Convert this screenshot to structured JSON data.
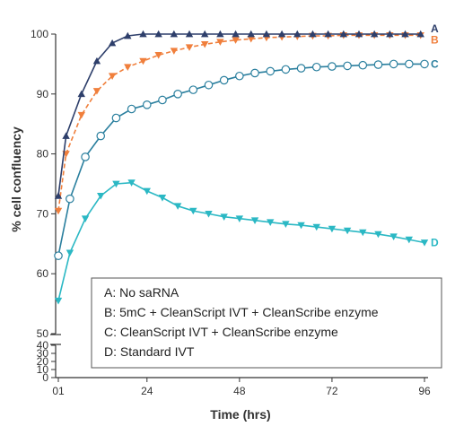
{
  "chart_data": {
    "type": "line",
    "xlabel": "Time (hrs)",
    "ylabel": "% cell confluency",
    "xlim": [
      1,
      96
    ],
    "ylim_main": [
      50,
      100
    ],
    "ylim_inset": [
      0,
      40
    ],
    "y_axis_break": true,
    "x_ticks": [
      {
        "value": 1,
        "label": "01"
      },
      {
        "value": 24,
        "label": "24"
      },
      {
        "value": 48,
        "label": "48"
      },
      {
        "value": 72,
        "label": "72"
      },
      {
        "value": 96,
        "label": "96"
      }
    ],
    "y_ticks_main": [
      {
        "value": 50,
        "label": "50"
      },
      {
        "value": 60,
        "label": "60"
      },
      {
        "value": 70,
        "label": "70"
      },
      {
        "value": 80,
        "label": "80"
      },
      {
        "value": 90,
        "label": "90"
      },
      {
        "value": 100,
        "label": "100"
      }
    ],
    "y_ticks_inset": [
      {
        "value": 0,
        "label": "0"
      },
      {
        "value": 10,
        "label": "10"
      },
      {
        "value": 20,
        "label": "20"
      },
      {
        "value": 30,
        "label": "30"
      },
      {
        "value": 40,
        "label": "40"
      }
    ],
    "grid": false,
    "legend_position": "bottom-right",
    "legend_entries": [
      "A: No saRNA",
      "B: 5mC + CleanScript IVT + CleanScribe enzyme",
      "C: CleanScript IVT + CleanScribe enzyme",
      "D: Standard IVT"
    ],
    "series": [
      {
        "name": "A",
        "color": "#2e3f6b",
        "marker": "triangle-up",
        "line": "solid",
        "x": [
          1,
          3,
          7,
          11,
          15,
          19,
          23,
          27,
          31,
          35,
          39,
          43,
          47,
          51,
          55,
          59,
          63,
          67,
          71,
          75,
          79,
          83,
          87,
          91,
          95
        ],
        "y": [
          73,
          83,
          90,
          95.5,
          98.5,
          99.7,
          100,
          100,
          100,
          100,
          100,
          100,
          100,
          100,
          100,
          100,
          100,
          100,
          100,
          100,
          100,
          100,
          100,
          100,
          100
        ]
      },
      {
        "name": "B",
        "color": "#f07f3c",
        "marker": "triangle-down",
        "line": "dashed",
        "x": [
          1,
          3,
          7,
          11,
          15,
          19,
          23,
          27,
          31,
          35,
          39,
          43,
          47,
          51,
          55,
          59,
          63,
          67,
          71,
          75,
          79,
          83,
          87,
          91,
          95
        ],
        "y": [
          70.5,
          80,
          86.5,
          90.5,
          93,
          94.5,
          95.5,
          96.5,
          97.2,
          97.8,
          98.3,
          98.7,
          99,
          99.2,
          99.4,
          99.5,
          99.6,
          99.7,
          99.7,
          99.8,
          99.8,
          99.8,
          99.8,
          99.8,
          99.8
        ]
      },
      {
        "name": "C",
        "color": "#2a7f9e",
        "marker": "circle",
        "line": "solid",
        "x": [
          1,
          4,
          8,
          12,
          16,
          20,
          24,
          28,
          32,
          36,
          40,
          44,
          48,
          52,
          56,
          60,
          64,
          68,
          72,
          76,
          80,
          84,
          88,
          92,
          96
        ],
        "y": [
          63,
          72.5,
          79.5,
          83,
          86,
          87.5,
          88.2,
          89,
          90,
          90.7,
          91.5,
          92.3,
          93,
          93.5,
          93.8,
          94.1,
          94.3,
          94.5,
          94.6,
          94.7,
          94.8,
          94.9,
          95,
          95,
          95
        ]
      },
      {
        "name": "D",
        "color": "#2bb8c4",
        "marker": "triangle-down",
        "line": "solid",
        "x": [
          1,
          4,
          8,
          12,
          16,
          20,
          24,
          28,
          32,
          36,
          40,
          44,
          48,
          52,
          56,
          60,
          64,
          68,
          72,
          76,
          80,
          84,
          88,
          92,
          96
        ],
        "y": [
          55.5,
          63.5,
          69.2,
          73,
          75,
          75.2,
          73.8,
          72.7,
          71.3,
          70.5,
          70,
          69.5,
          69.2,
          68.9,
          68.6,
          68.3,
          68.1,
          67.8,
          67.5,
          67.2,
          66.9,
          66.6,
          66.2,
          65.7,
          65.2
        ]
      }
    ]
  }
}
